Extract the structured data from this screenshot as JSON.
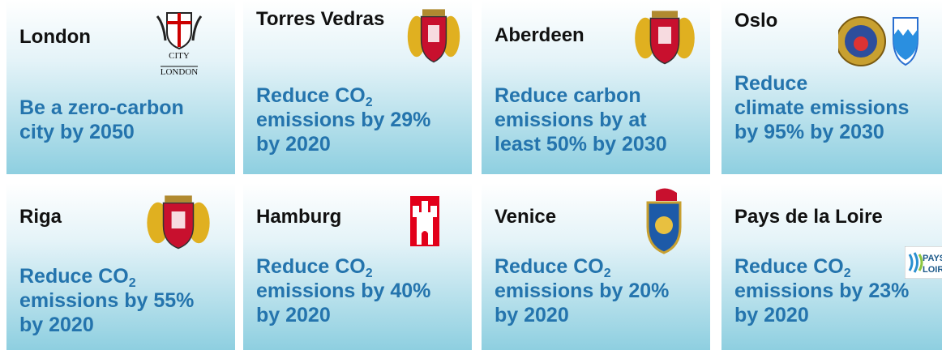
{
  "cards": [
    {
      "name": "London",
      "logo_text": [
        "CITY",
        "LONDON"
      ],
      "goal": [
        {
          "text": "Be a zero-carbon"
        },
        {
          "text": "city by 2050"
        }
      ]
    },
    {
      "name": "Torres Vedras",
      "goal": [
        {
          "text": "Reduce CO",
          "sub": "2"
        },
        {
          "text": "emissions by 29%"
        },
        {
          "text": "by 2020"
        }
      ]
    },
    {
      "name": "Aberdeen",
      "goal": [
        {
          "text": "Reduce carbon"
        },
        {
          "text": "emissions by at"
        },
        {
          "text": "least 50% by 2030"
        }
      ]
    },
    {
      "name": "Oslo",
      "goal": [
        {
          "text": "Reduce"
        },
        {
          "text": "climate emissions"
        },
        {
          "text": "by 95% by 2030"
        }
      ]
    },
    {
      "name": "Riga",
      "goal": [
        {
          "text": "Reduce CO",
          "sub": "2"
        },
        {
          "text": "emissions by 55%"
        },
        {
          "text": "by 2020"
        }
      ]
    },
    {
      "name": "Hamburg",
      "goal": [
        {
          "text": "Reduce CO",
          "sub": "2"
        },
        {
          "text": "emissions by 40%"
        },
        {
          "text": "by 2020"
        }
      ]
    },
    {
      "name": "Venice",
      "goal": [
        {
          "text": "Reduce CO",
          "sub": "2"
        },
        {
          "text": "emissions by 20%"
        },
        {
          "text": "by 2020"
        }
      ]
    },
    {
      "name": "Pays de la Loire",
      "logo_text": [
        "PAYS",
        "LOIRE"
      ],
      "goal": [
        {
          "text": "Reduce CO",
          "sub": "2"
        },
        {
          "text": "emissions by 23%"
        },
        {
          "text": "by 2020"
        }
      ]
    }
  ]
}
